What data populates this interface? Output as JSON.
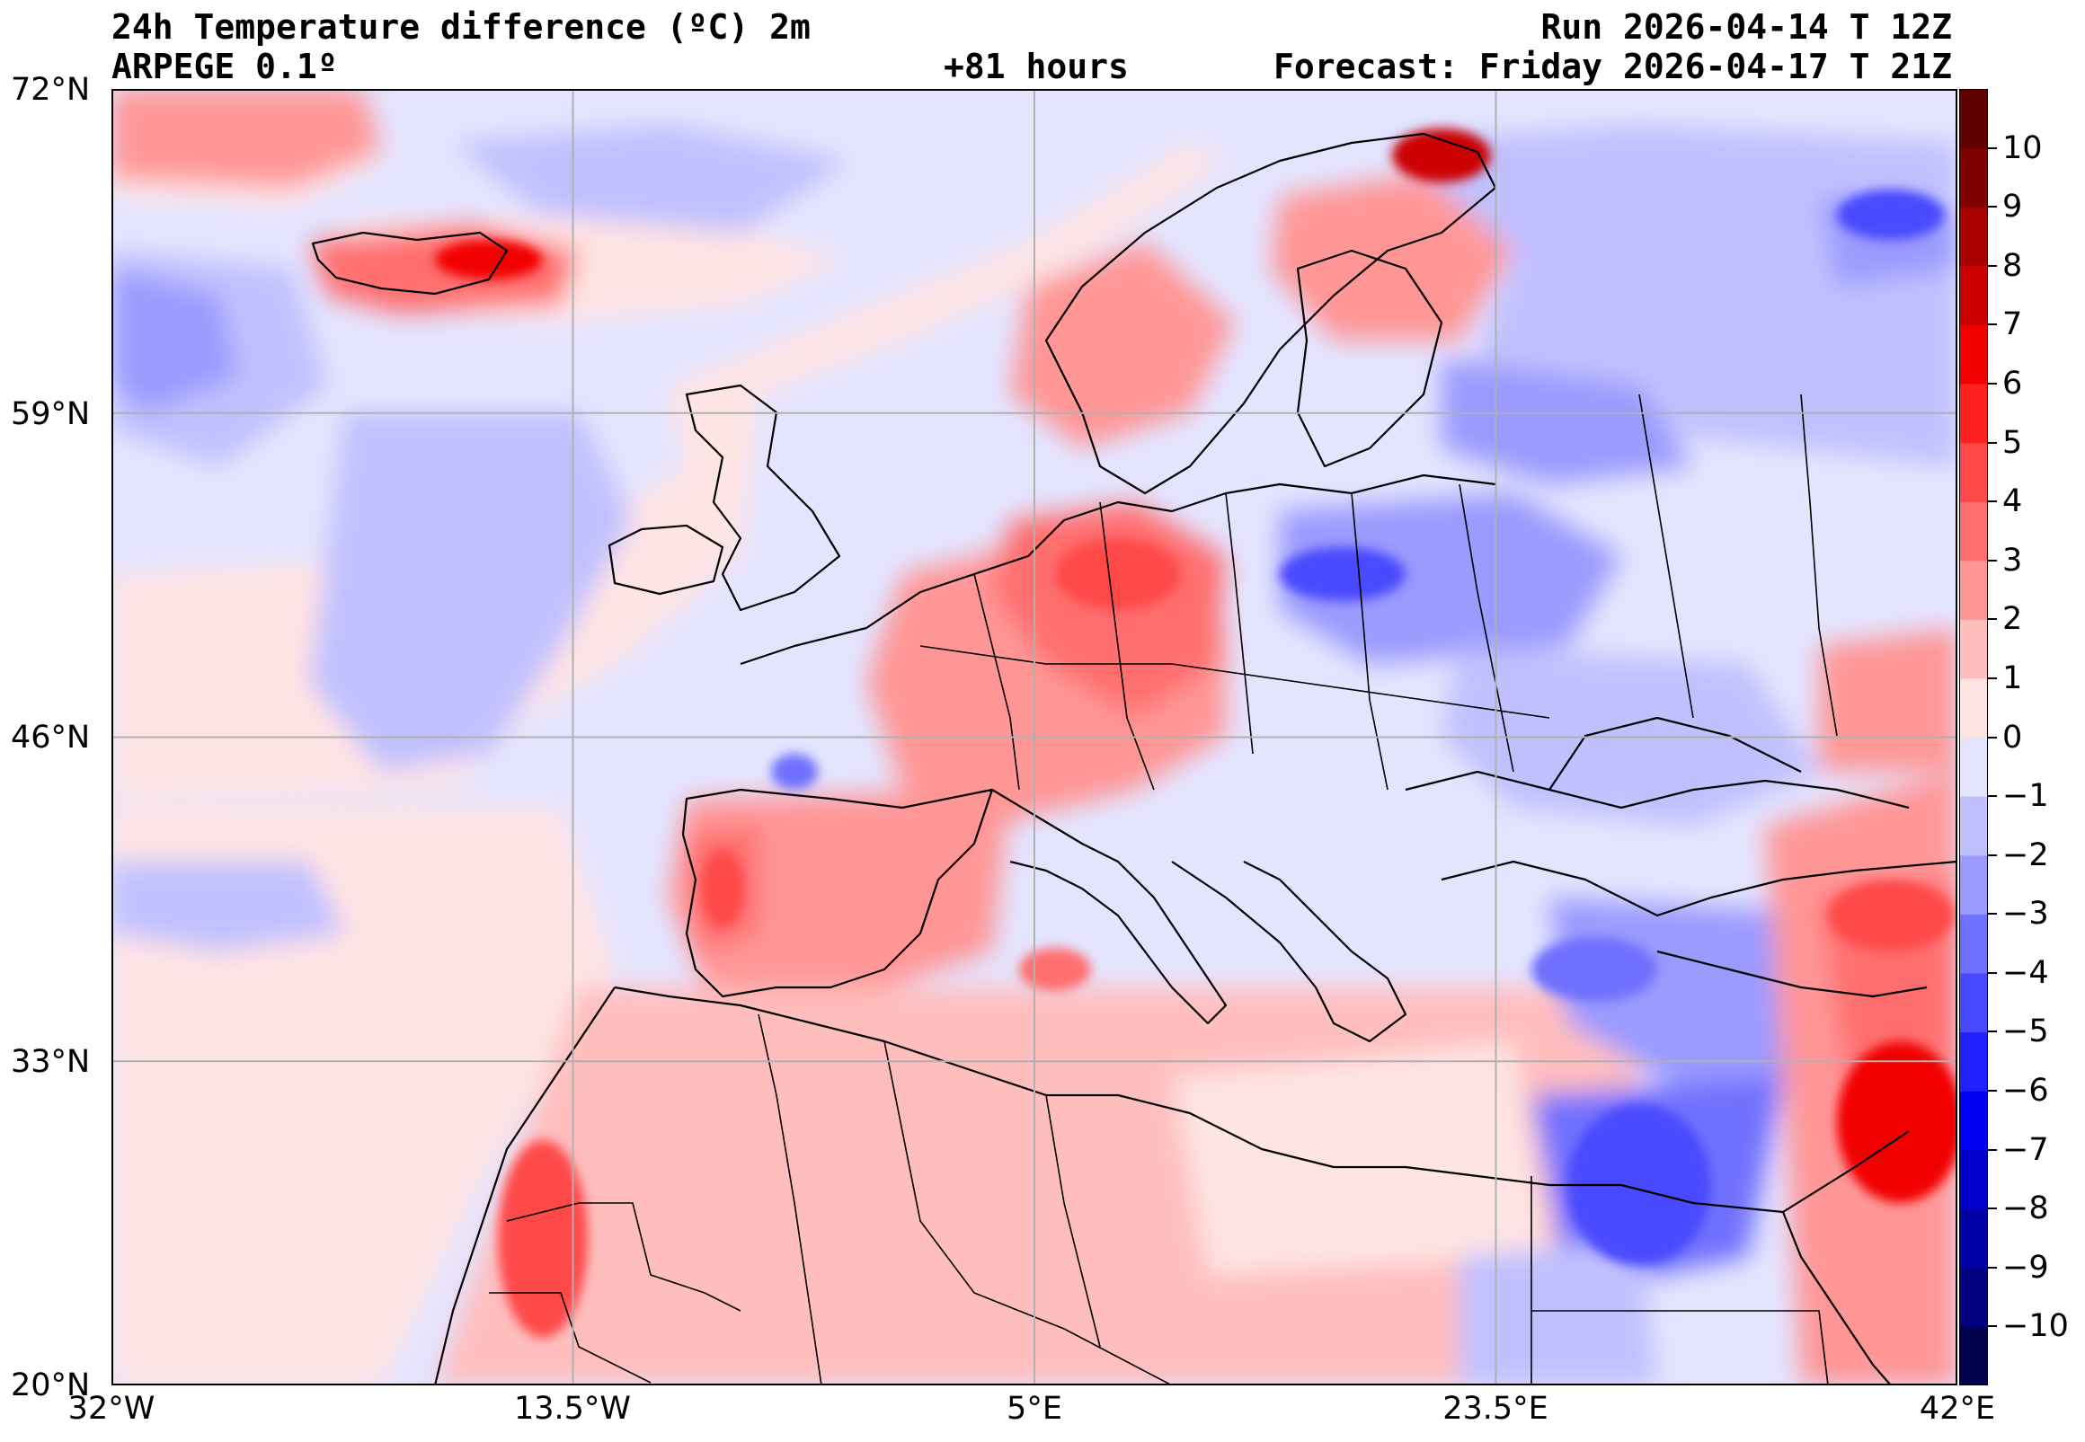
{
  "header": {
    "title_left": "24h Temperature difference (ºC) 2m",
    "model": "ARPEGE 0.1º",
    "lead_time": "+81 hours",
    "run": "Run 2026-04-14 T 12Z",
    "forecast": "Forecast: Friday 2026-04-17 T 21Z"
  },
  "axes": {
    "lat_labels": [
      "72°N",
      "59°N",
      "46°N",
      "33°N",
      "20°N"
    ],
    "lon_labels": [
      "32°W",
      "13.5°W",
      "5°E",
      "23.5°E",
      "42°E"
    ],
    "lat_range": [
      20,
      72
    ],
    "lon_range": [
      -32,
      42
    ],
    "grid_lats": [
      59,
      46,
      33
    ],
    "grid_lons": [
      -13.5,
      5,
      23.5
    ]
  },
  "colorbar": {
    "min": -11,
    "max": 11,
    "tick_values": [
      10,
      9,
      8,
      7,
      6,
      5,
      4,
      3,
      2,
      1,
      0,
      -1,
      -2,
      -3,
      -4,
      -5,
      -6,
      -7,
      -8,
      -9,
      -10
    ],
    "tick_labels": [
      "10",
      "9",
      "8",
      "7",
      "6",
      "5",
      "4",
      "3",
      "2",
      "1",
      "0",
      "−1",
      "−2",
      "−3",
      "−4",
      "−5",
      "−6",
      "−7",
      "−8",
      "−9",
      "−10"
    ],
    "colors": {
      "-11": "#00004c",
      "-10": "#000080",
      "-9": "#0000a6",
      "-8": "#0000cc",
      "-7": "#0000f2",
      "-6": "#2020ff",
      "-5": "#4848ff",
      "-4": "#7070ff",
      "-3": "#9a9aff",
      "-2": "#c0c0ff",
      "-1": "#e4e4ff",
      "0": "#ffe4e4",
      "1": "#ffbebe",
      "2": "#ff9696",
      "3": "#ff6e6e",
      "4": "#ff4848",
      "5": "#ff2020",
      "6": "#f20000",
      "7": "#cc0000",
      "8": "#a60000",
      "9": "#800000",
      "10": "#600000"
    }
  },
  "map": {
    "ocean_color": "#e4e4ff",
    "coast_color": "#000000",
    "grid_color": "#b0b0b0"
  }
}
